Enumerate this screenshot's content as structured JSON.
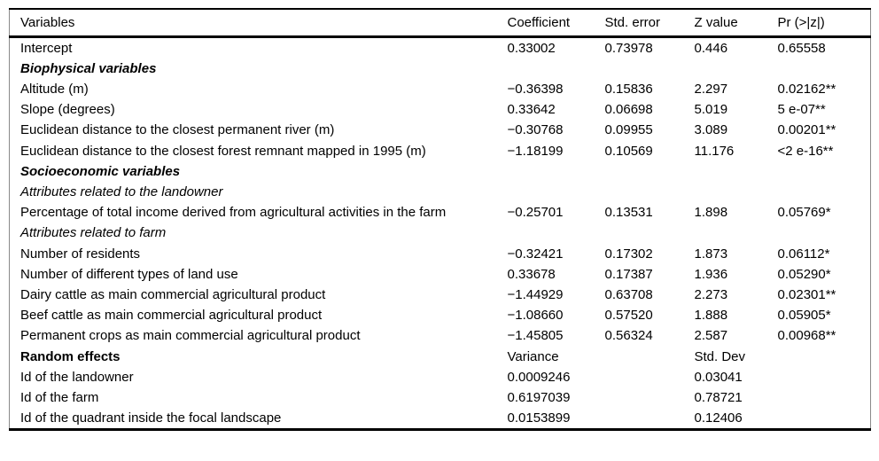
{
  "table": {
    "columns": [
      "Variables",
      "Coefficient",
      "Std. error",
      "Z value",
      "Pr (>|z|)"
    ],
    "rows": [
      {
        "label": "Intercept",
        "coef": "0.33002",
        "se": "0.73978",
        "z": "0.446",
        "p": "0.65558"
      },
      {
        "label": "Biophysical variables",
        "emphasis": "bold-italic"
      },
      {
        "label": "Altitude (m)",
        "coef": "−0.36398",
        "se": "0.15836",
        "z": "2.297",
        "p": "0.02162**"
      },
      {
        "label": "Slope (degrees)",
        "coef": "0.33642",
        "se": "0.06698",
        "z": "5.019",
        "p": "5 e-07**"
      },
      {
        "label": "Euclidean distance to the closest permanent river (m)",
        "coef": "−0.30768",
        "se": "0.09955",
        "z": "3.089",
        "p": "0.00201**"
      },
      {
        "label": "Euclidean distance to the closest forest remnant mapped in 1995 (m)",
        "coef": "−1.18199",
        "se": "0.10569",
        "z": "11.176",
        "p": "<2 e-16**"
      },
      {
        "label": "Socioeconomic variables",
        "emphasis": "bold-italic"
      },
      {
        "label": "Attributes related to the landowner",
        "emphasis": "italic"
      },
      {
        "label": "Percentage of total income derived from agricultural activities in the farm",
        "coef": "−0.25701",
        "se": "0.13531",
        "z": "1.898",
        "p": "0.05769*"
      },
      {
        "label": "Attributes related to farm",
        "emphasis": "italic"
      },
      {
        "label": "Number of residents",
        "coef": "−0.32421",
        "se": "0.17302",
        "z": "1.873",
        "p": "0.06112*"
      },
      {
        "label": "Number of different types of land use",
        "coef": "0.33678",
        "se": "0.17387",
        "z": "1.936",
        "p": "0.05290*"
      },
      {
        "label": "Dairy cattle as main commercial agricultural product",
        "coef": "−1.44929",
        "se": "0.63708",
        "z": "2.273",
        "p": "0.02301**"
      },
      {
        "label": "Beef cattle as main commercial agricultural product",
        "coef": "−1.08660",
        "se": "0.57520",
        "z": "1.888",
        "p": "0.05905*"
      },
      {
        "label": "Permanent crops as main commercial agricultural product",
        "coef": "−1.45805",
        "se": "0.56324",
        "z": "2.587",
        "p": "0.00968**"
      },
      {
        "label": "Random effects",
        "emphasis": "bold",
        "coef": "Variance",
        "se": "",
        "z": "Std. Dev",
        "p": ""
      },
      {
        "label": "Id of the landowner",
        "coef": "0.0009246",
        "se": "",
        "z": "0.03041",
        "p": ""
      },
      {
        "label": "Id of the farm",
        "coef": "0.6197039",
        "se": "",
        "z": "0.78721",
        "p": ""
      },
      {
        "label": "Id of the quadrant inside the focal landscape",
        "coef": "0.0153899",
        "se": "",
        "z": "0.12406",
        "p": ""
      }
    ]
  }
}
